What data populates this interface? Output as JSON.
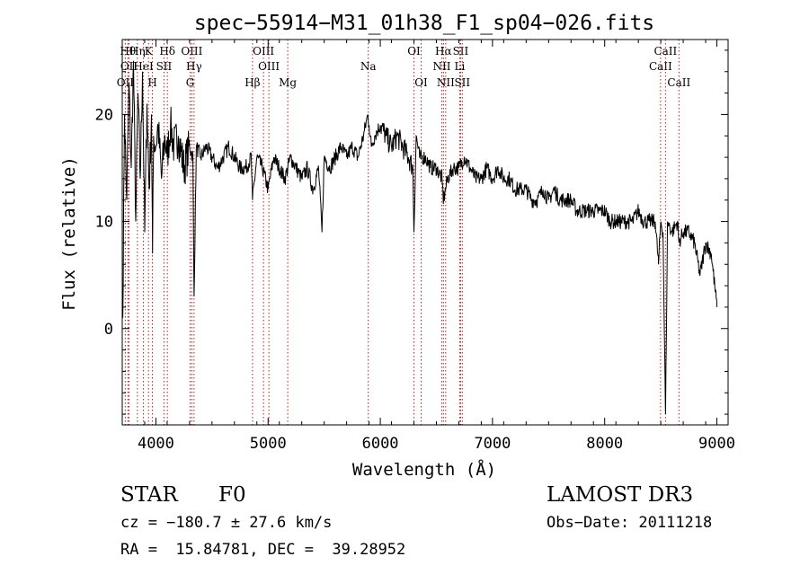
{
  "chart_data": {
    "type": "line",
    "title": "spec−55914−M31_01h38_F1_sp04−026.fits",
    "xlabel": "Wavelength (Å)",
    "ylabel": "Flux (relative)",
    "xlim": [
      3700,
      9100
    ],
    "ylim": [
      -9,
      27
    ],
    "xticks": [
      4000,
      5000,
      6000,
      7000,
      8000,
      9000
    ],
    "yticks": [
      0,
      10,
      20
    ],
    "tick_labels_x": [
      "4000",
      "5000",
      "6000",
      "7000",
      "8000",
      "9000"
    ],
    "tick_labels_y": [
      "0",
      "10",
      "20"
    ],
    "grid": false,
    "line_color": "#000000",
    "marker_color": "#b22222",
    "series_name": "spectrum",
    "spectrum": {
      "x": [
        3705,
        3720,
        3740,
        3760,
        3780,
        3800,
        3820,
        3840,
        3860,
        3880,
        3900,
        3920,
        3940,
        3960,
        3970,
        3980,
        4000,
        4020,
        4050,
        4080,
        4100,
        4130,
        4160,
        4200,
        4250,
        4300,
        4330,
        4340,
        4360,
        4400,
        4450,
        4500,
        4550,
        4600,
        4650,
        4700,
        4750,
        4800,
        4850,
        4861,
        4900,
        4950,
        5000,
        5050,
        5100,
        5150,
        5200,
        5250,
        5300,
        5350,
        5400,
        5450,
        5480,
        5500,
        5550,
        5600,
        5650,
        5700,
        5750,
        5800,
        5850,
        5890,
        5900,
        5920,
        5950,
        6000,
        6050,
        6100,
        6150,
        6200,
        6250,
        6290,
        6300,
        6320,
        6350,
        6400,
        6450,
        6500,
        6550,
        6563,
        6600,
        6650,
        6700,
        6750,
        6800,
        6850,
        6900,
        6950,
        7000,
        7050,
        7100,
        7150,
        7200,
        7250,
        7300,
        7350,
        7400,
        7450,
        7500,
        7550,
        7600,
        7650,
        7700,
        7750,
        7800,
        7850,
        7900,
        7950,
        8000,
        8050,
        8100,
        8150,
        8200,
        8250,
        8300,
        8350,
        8400,
        8450,
        8480,
        8500,
        8520,
        8542,
        8560,
        8600,
        8650,
        8662,
        8700,
        8750,
        8800,
        8850,
        8900,
        8950,
        9000
      ],
      "y": [
        1,
        20,
        12,
        23,
        15,
        25,
        10,
        22,
        14,
        24,
        9,
        21,
        13,
        20,
        7,
        18,
        17,
        19,
        14,
        18,
        16,
        19,
        17,
        18,
        15,
        17,
        16,
        3,
        17,
        16,
        17,
        16,
        15,
        16,
        17,
        16,
        15,
        15,
        16,
        12,
        16,
        15,
        13,
        16,
        15,
        14,
        16,
        15,
        14,
        15,
        13,
        15,
        9,
        16,
        15,
        16,
        17,
        16,
        17,
        16,
        18,
        20,
        19,
        17,
        18,
        19,
        18,
        17,
        18,
        17,
        16,
        15,
        9,
        18,
        16,
        16,
        15,
        15,
        14,
        12,
        14,
        15,
        15,
        16,
        15,
        14,
        14,
        15,
        14,
        15,
        14,
        14,
        13,
        13,
        13,
        12,
        12,
        13,
        12,
        13,
        12,
        12,
        12,
        11,
        11,
        11,
        11,
        11,
        11,
        10,
        10,
        10,
        10,
        10,
        11,
        10,
        10,
        10,
        6,
        10,
        9,
        -8,
        10,
        9,
        10,
        8,
        9,
        9,
        8,
        5,
        8,
        7,
        2
      ]
    },
    "line_markers": [
      {
        "label": "OII",
        "x": 3727,
        "row": 3
      },
      {
        "label": "Hθ",
        "x": 3750,
        "row": 1
      },
      {
        "label": "OII",
        "x": 3760,
        "row": 2
      },
      {
        "label": "Hη",
        "x": 3835,
        "row": 1
      },
      {
        "label": "HeI",
        "x": 3889,
        "row": 2
      },
      {
        "label": "K",
        "x": 3934,
        "row": 1
      },
      {
        "label": "H",
        "x": 3969,
        "row": 3
      },
      {
        "label": "SII",
        "x": 4072,
        "row": 2
      },
      {
        "label": "Hδ",
        "x": 4102,
        "row": 1
      },
      {
        "label": "OIII",
        "x": 4320,
        "row": 1
      },
      {
        "label": "G",
        "x": 4305,
        "row": 3
      },
      {
        "label": "Hγ",
        "x": 4340,
        "row": 2
      },
      {
        "label": "Hβ",
        "x": 4861,
        "row": 3
      },
      {
        "label": "OIII",
        "x": 4959,
        "row": 1
      },
      {
        "label": "OIII",
        "x": 5007,
        "row": 2
      },
      {
        "label": "Mg",
        "x": 5175,
        "row": 3
      },
      {
        "label": "Na",
        "x": 5893,
        "row": 2
      },
      {
        "label": "OI",
        "x": 6300,
        "row": 1
      },
      {
        "label": "OI",
        "x": 6364,
        "row": 3
      },
      {
        "label": "NII",
        "x": 6548,
        "row": 2
      },
      {
        "label": "Hα",
        "x": 6563,
        "row": 1
      },
      {
        "label": "NII",
        "x": 6583,
        "row": 3
      },
      {
        "label": "Li",
        "x": 6708,
        "row": 2
      },
      {
        "label": "SII",
        "x": 6716,
        "row": 1
      },
      {
        "label": "SII",
        "x": 6731,
        "row": 3
      },
      {
        "label": "CaII",
        "x": 8498,
        "row": 2
      },
      {
        "label": "CaII",
        "x": 8542,
        "row": 1
      },
      {
        "label": "CaII",
        "x": 8662,
        "row": 3
      }
    ]
  },
  "info": {
    "class_label": "STAR",
    "subclass_label": "F0",
    "survey_label": "LAMOST DR3",
    "cz_text": "cz = −180.7 ± 27.6 km/s",
    "obs_date_text": "Obs−Date: 20111218",
    "coords_text": "RA =  15.84781, DEC =  39.28952"
  }
}
